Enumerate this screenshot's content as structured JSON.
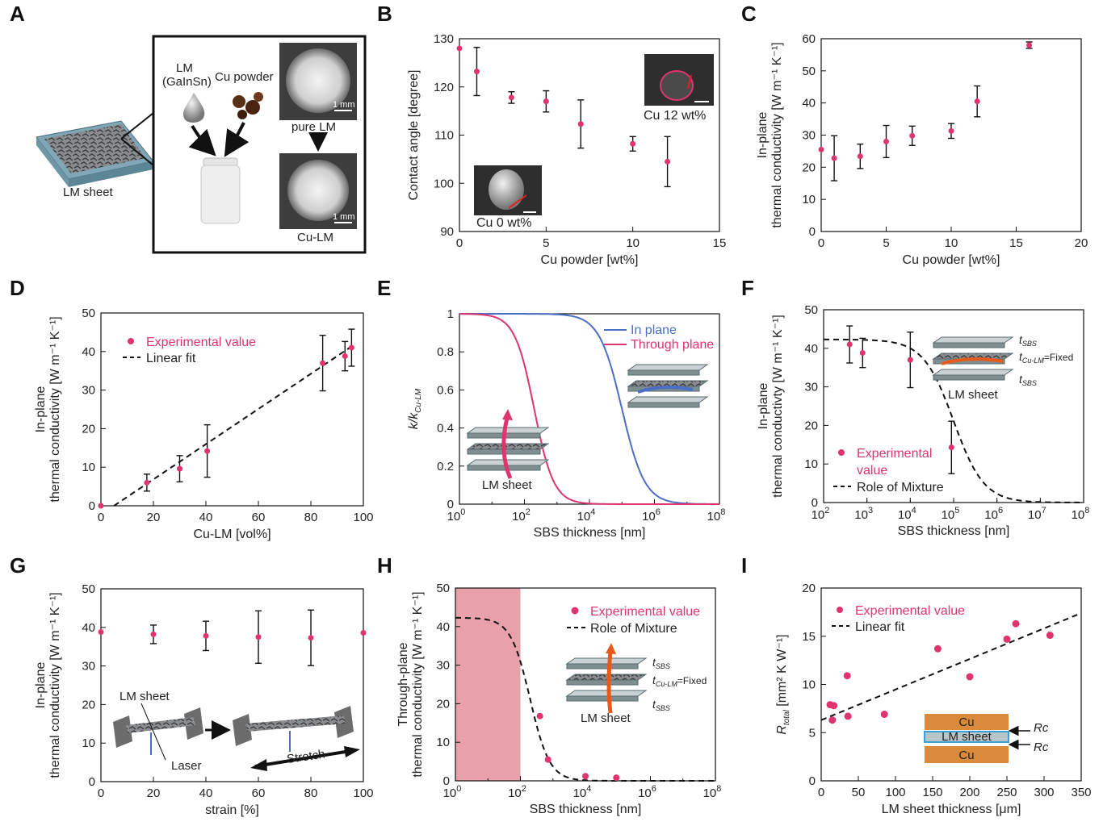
{
  "colors": {
    "marker": "#e0346f",
    "legend_text": "#e0346f",
    "fit_line": "#111111",
    "blue_curve": "#4a6fc4",
    "red_curve": "#e0346f",
    "shade": "#e8a0aa",
    "copper": "#d98a3a",
    "arrow_orange": "#e85a1a",
    "arrow_pink": "#e0346f"
  },
  "panel_a": {
    "label": "A",
    "lm_sheet": "LM sheet",
    "lm_line1": "LM",
    "lm_line2": "(GaInSn)",
    "cu_powder": "Cu powder",
    "pure_lm": "pure LM",
    "cu_lm": "Cu-LM",
    "scale": "1 mm"
  },
  "chart_data": [
    {
      "id": "B",
      "type": "scatter",
      "xlabel": "Cu powder [wt%]",
      "ylabel": "Contact angle [degree]",
      "xlim": [
        0,
        15
      ],
      "ylim": [
        90,
        130
      ],
      "xticks": [
        "0",
        "5",
        "10",
        "15"
      ],
      "yticks": [
        "90",
        "100",
        "110",
        "120",
        "130"
      ],
      "points": [
        {
          "x": 0,
          "y": 128,
          "err": 0
        },
        {
          "x": 1,
          "y": 123.2,
          "err": 5
        },
        {
          "x": 3,
          "y": 117.8,
          "err": 1.2
        },
        {
          "x": 5,
          "y": 117,
          "err": 2.2
        },
        {
          "x": 7,
          "y": 112.3,
          "err": 5
        },
        {
          "x": 10,
          "y": 108.2,
          "err": 1.5
        },
        {
          "x": 12,
          "y": 104.5,
          "err": 5.2
        }
      ],
      "insets": [
        "Cu 12 wt%",
        "Cu 0 wt%"
      ]
    },
    {
      "id": "C",
      "type": "scatter",
      "xlabel": "Cu powder [wt%]",
      "ylabel_1": "In-plane",
      "ylabel_2": "thermal conductivity [W m⁻¹ K⁻¹]",
      "xlim": [
        0,
        20
      ],
      "ylim": [
        0,
        60
      ],
      "xticks": [
        "0",
        "5",
        "10",
        "15",
        "20"
      ],
      "yticks": [
        "0",
        "10",
        "20",
        "30",
        "40",
        "50",
        "60"
      ],
      "points": [
        {
          "x": 0,
          "y": 25.5,
          "err": 0
        },
        {
          "x": 1,
          "y": 22.8,
          "err": 7
        },
        {
          "x": 3,
          "y": 23.4,
          "err": 3.8
        },
        {
          "x": 5,
          "y": 28,
          "err": 5
        },
        {
          "x": 7,
          "y": 29.8,
          "err": 3
        },
        {
          "x": 10,
          "y": 31.3,
          "err": 2.3
        },
        {
          "x": 12,
          "y": 40.5,
          "err": 4.8
        },
        {
          "x": 16,
          "y": 58,
          "err": 1
        }
      ]
    },
    {
      "id": "D",
      "type": "scatter",
      "xlabel": "Cu-LM [vol%]",
      "ylabel_1": "In-plane",
      "ylabel_2": "thermal conductivity [W m⁻¹ K⁻¹]",
      "xlim": [
        0,
        100
      ],
      "ylim": [
        0,
        50
      ],
      "xticks": [
        "0",
        "20",
        "40",
        "60",
        "80",
        "100"
      ],
      "yticks": [
        "0",
        "10",
        "20",
        "30",
        "40",
        "50"
      ],
      "points": [
        {
          "x": 0,
          "y": 0,
          "err": 0
        },
        {
          "x": 17.5,
          "y": 6,
          "err": 2.2
        },
        {
          "x": 30,
          "y": 9.6,
          "err": 3.4
        },
        {
          "x": 40.5,
          "y": 14.2,
          "err": 6.8
        },
        {
          "x": 84.5,
          "y": 37,
          "err": 7.2
        },
        {
          "x": 93,
          "y": 38.8,
          "err": 3.8
        },
        {
          "x": 95.5,
          "y": 41,
          "err": 4.8
        }
      ],
      "fit": {
        "x0": 5,
        "y0": 0,
        "x1": 97,
        "y1": 42
      },
      "legend": [
        "Experimental value",
        "Linear fit"
      ]
    },
    {
      "id": "E",
      "type": "line",
      "xlabel": "SBS thickness [nm]",
      "ylabel": "k/k",
      "ylabel_sub": "Cu-LM",
      "xlim_log": [
        0,
        8
      ],
      "ylim": [
        0,
        1
      ],
      "xticks_base": "10",
      "xticks_exp": [
        "0",
        "2",
        "4",
        "6",
        "8"
      ],
      "yticks": [
        "0",
        "0.2",
        "0.4",
        "0.6",
        "0.8",
        "1"
      ],
      "series": [
        {
          "name": "In plane",
          "center_log": 5.0,
          "width": 0.35
        },
        {
          "name": "Through plane",
          "center_log": 2.3,
          "width": 0.3
        }
      ],
      "inset": "LM sheet"
    },
    {
      "id": "F",
      "type": "scatter",
      "xlabel": "SBS thickness [nm]",
      "ylabel_1": "In-plane",
      "ylabel_2": "thermal conductivty [W m⁻¹ K⁻¹]",
      "xlim_log": [
        2,
        8
      ],
      "ylim": [
        0,
        50
      ],
      "xticks_base": "10",
      "xticks_exp": [
        "2",
        "3",
        "4",
        "5",
        "6",
        "7",
        "8"
      ],
      "yticks": [
        "0",
        "10",
        "20",
        "30",
        "40",
        "50"
      ],
      "points": [
        {
          "logx": 2.6,
          "y": 41,
          "err": 4.8
        },
        {
          "logx": 2.9,
          "y": 38.8,
          "err": 3.8
        },
        {
          "logx": 4.0,
          "y": 37,
          "err": 7.2
        },
        {
          "logx": 4.95,
          "y": 14.3,
          "err": 6.8
        }
      ],
      "curve": {
        "center_log": 5.0,
        "width": 0.35,
        "ymax": 42.3
      },
      "legend": [
        "Experimental",
        "value",
        "Role of Mixture"
      ],
      "inset": {
        "t_sbs": "t",
        "t_sub_sbs": "SBS",
        "t_sub_culm": "Cu-LM",
        "fixed": "=Fixed",
        "sheet": "LM sheet"
      }
    },
    {
      "id": "G",
      "type": "scatter",
      "xlabel": "strain [%]",
      "ylabel_1": "In-plane",
      "ylabel_2": "thermal conductivity [W m⁻¹ K⁻¹]",
      "xlim": [
        0,
        100
      ],
      "ylim": [
        0,
        50
      ],
      "xticks": [
        "0",
        "20",
        "40",
        "60",
        "80",
        "100"
      ],
      "yticks": [
        "0",
        "10",
        "20",
        "30",
        "40",
        "50"
      ],
      "points": [
        {
          "x": 0,
          "y": 38.8,
          "err": 0
        },
        {
          "x": 20,
          "y": 38.2,
          "err": 2.4
        },
        {
          "x": 40,
          "y": 37.8,
          "err": 3.8
        },
        {
          "x": 60,
          "y": 37.5,
          "err": 6.8
        },
        {
          "x": 80,
          "y": 37.3,
          "err": 7.2
        },
        {
          "x": 100,
          "y": 38.6,
          "err": 0
        }
      ],
      "inset": {
        "sheet": "LM sheet",
        "laser": "Laser",
        "stretch": "Stretch"
      }
    },
    {
      "id": "H",
      "type": "scatter",
      "xlabel": "SBS thickness [nm]",
      "ylabel_1": "Through-plane",
      "ylabel_2": "thermal conductivity [W m⁻¹ K⁻¹]",
      "xlim_log": [
        0,
        8
      ],
      "ylim": [
        0,
        50
      ],
      "xticks_base": "10",
      "xticks_exp": [
        "0",
        "2",
        "4",
        "6",
        "8"
      ],
      "yticks": [
        "0",
        "10",
        "20",
        "30",
        "40",
        "50"
      ],
      "points": [
        {
          "logx": 2.6,
          "y": 16.8
        },
        {
          "logx": 2.85,
          "y": 5.5
        },
        {
          "logx": 4.0,
          "y": 1.2
        },
        {
          "logx": 4.95,
          "y": 0.8
        }
      ],
      "curve": {
        "center_log": 2.3,
        "width": 0.3,
        "ymax": 42.3
      },
      "shaded_log": [
        0,
        2
      ],
      "legend": [
        "Experimental value",
        "Role of Mixture"
      ],
      "inset": {
        "t_sbs": "t",
        "t_sub_sbs": "SBS",
        "t_sub_culm": "Cu-LM",
        "fixed": "=Fixed",
        "sheet": "LM sheet"
      }
    },
    {
      "id": "I",
      "type": "scatter",
      "xlabel": "LM sheet thickness [μm]",
      "ylabel": "R",
      "ylabel_sub": "total",
      "ylabel_unit": " [mm² K W⁻¹]",
      "xlim": [
        0,
        350
      ],
      "ylim": [
        0,
        20
      ],
      "xticks": [
        "0",
        "50",
        "100",
        "150",
        "200",
        "250",
        "300",
        "350"
      ],
      "yticks": [
        "0",
        "5",
        "10",
        "15",
        "20"
      ],
      "points": [
        {
          "x": 12,
          "y": 7.9
        },
        {
          "x": 15,
          "y": 6.3
        },
        {
          "x": 17,
          "y": 7.8
        },
        {
          "x": 35,
          "y": 10.9
        },
        {
          "x": 36,
          "y": 6.7
        },
        {
          "x": 85,
          "y": 6.9
        },
        {
          "x": 157,
          "y": 13.7
        },
        {
          "x": 200,
          "y": 10.8
        },
        {
          "x": 250,
          "y": 14.7
        },
        {
          "x": 262,
          "y": 16.3
        },
        {
          "x": 308,
          "y": 15.1
        }
      ],
      "fit": {
        "x0": 0,
        "y0": 6.3,
        "x1": 350,
        "y1": 17.4
      },
      "legend": [
        "Experimental value",
        "Linear fit"
      ],
      "inset": {
        "top": "Cu",
        "mid": "LM sheet",
        "bot": "Cu",
        "rc": "Rc"
      }
    }
  ]
}
